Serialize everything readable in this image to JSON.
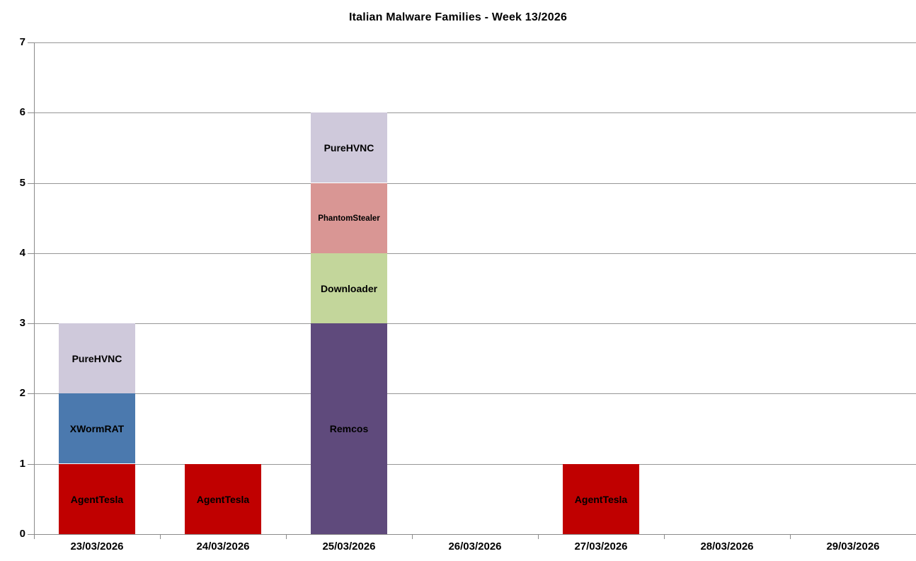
{
  "chart_data": {
    "type": "bar",
    "stacked": true,
    "title": "Italian Malware Families - Week 13/2026",
    "categories": [
      "23/03/2026",
      "24/03/2026",
      "25/03/2026",
      "26/03/2026",
      "27/03/2026",
      "28/03/2026",
      "29/03/2026"
    ],
    "series": [
      {
        "name": "AgentTesla",
        "color": "#C00000",
        "values": [
          1,
          1,
          0,
          0,
          1,
          0,
          0
        ]
      },
      {
        "name": "Remcos",
        "color": "#5F4A7C",
        "values": [
          0,
          0,
          3,
          0,
          0,
          0,
          0
        ]
      },
      {
        "name": "XWormRAT",
        "color": "#4B79AE",
        "values": [
          1,
          0,
          0,
          0,
          0,
          0,
          0
        ]
      },
      {
        "name": "Downloader",
        "color": "#C3D69B",
        "values": [
          0,
          0,
          1,
          0,
          0,
          0,
          0
        ]
      },
      {
        "name": "PhantomStealer",
        "color": "#D99694",
        "values": [
          0,
          0,
          1,
          0,
          0,
          0,
          0
        ]
      },
      {
        "name": "PureHVNC",
        "color": "#CFC9DB",
        "values": [
          1,
          0,
          1,
          0,
          0,
          0,
          0
        ]
      }
    ],
    "totals_per_category": [
      3,
      1,
      6,
      0,
      1,
      0,
      0
    ],
    "xlabel": "",
    "ylabel": "",
    "ylim": [
      0,
      7
    ],
    "ytick_step": 1,
    "ytick_labels": [
      "0",
      "1",
      "2",
      "3",
      "4",
      "5",
      "6",
      "7"
    ],
    "grid": true,
    "legend": "none",
    "segment_labels_inside": true
  },
  "style": {
    "grid_color": "#969696",
    "axis_color": "#8A8A8A",
    "text_color": "#000000",
    "background_color": "#FFFFFF"
  }
}
